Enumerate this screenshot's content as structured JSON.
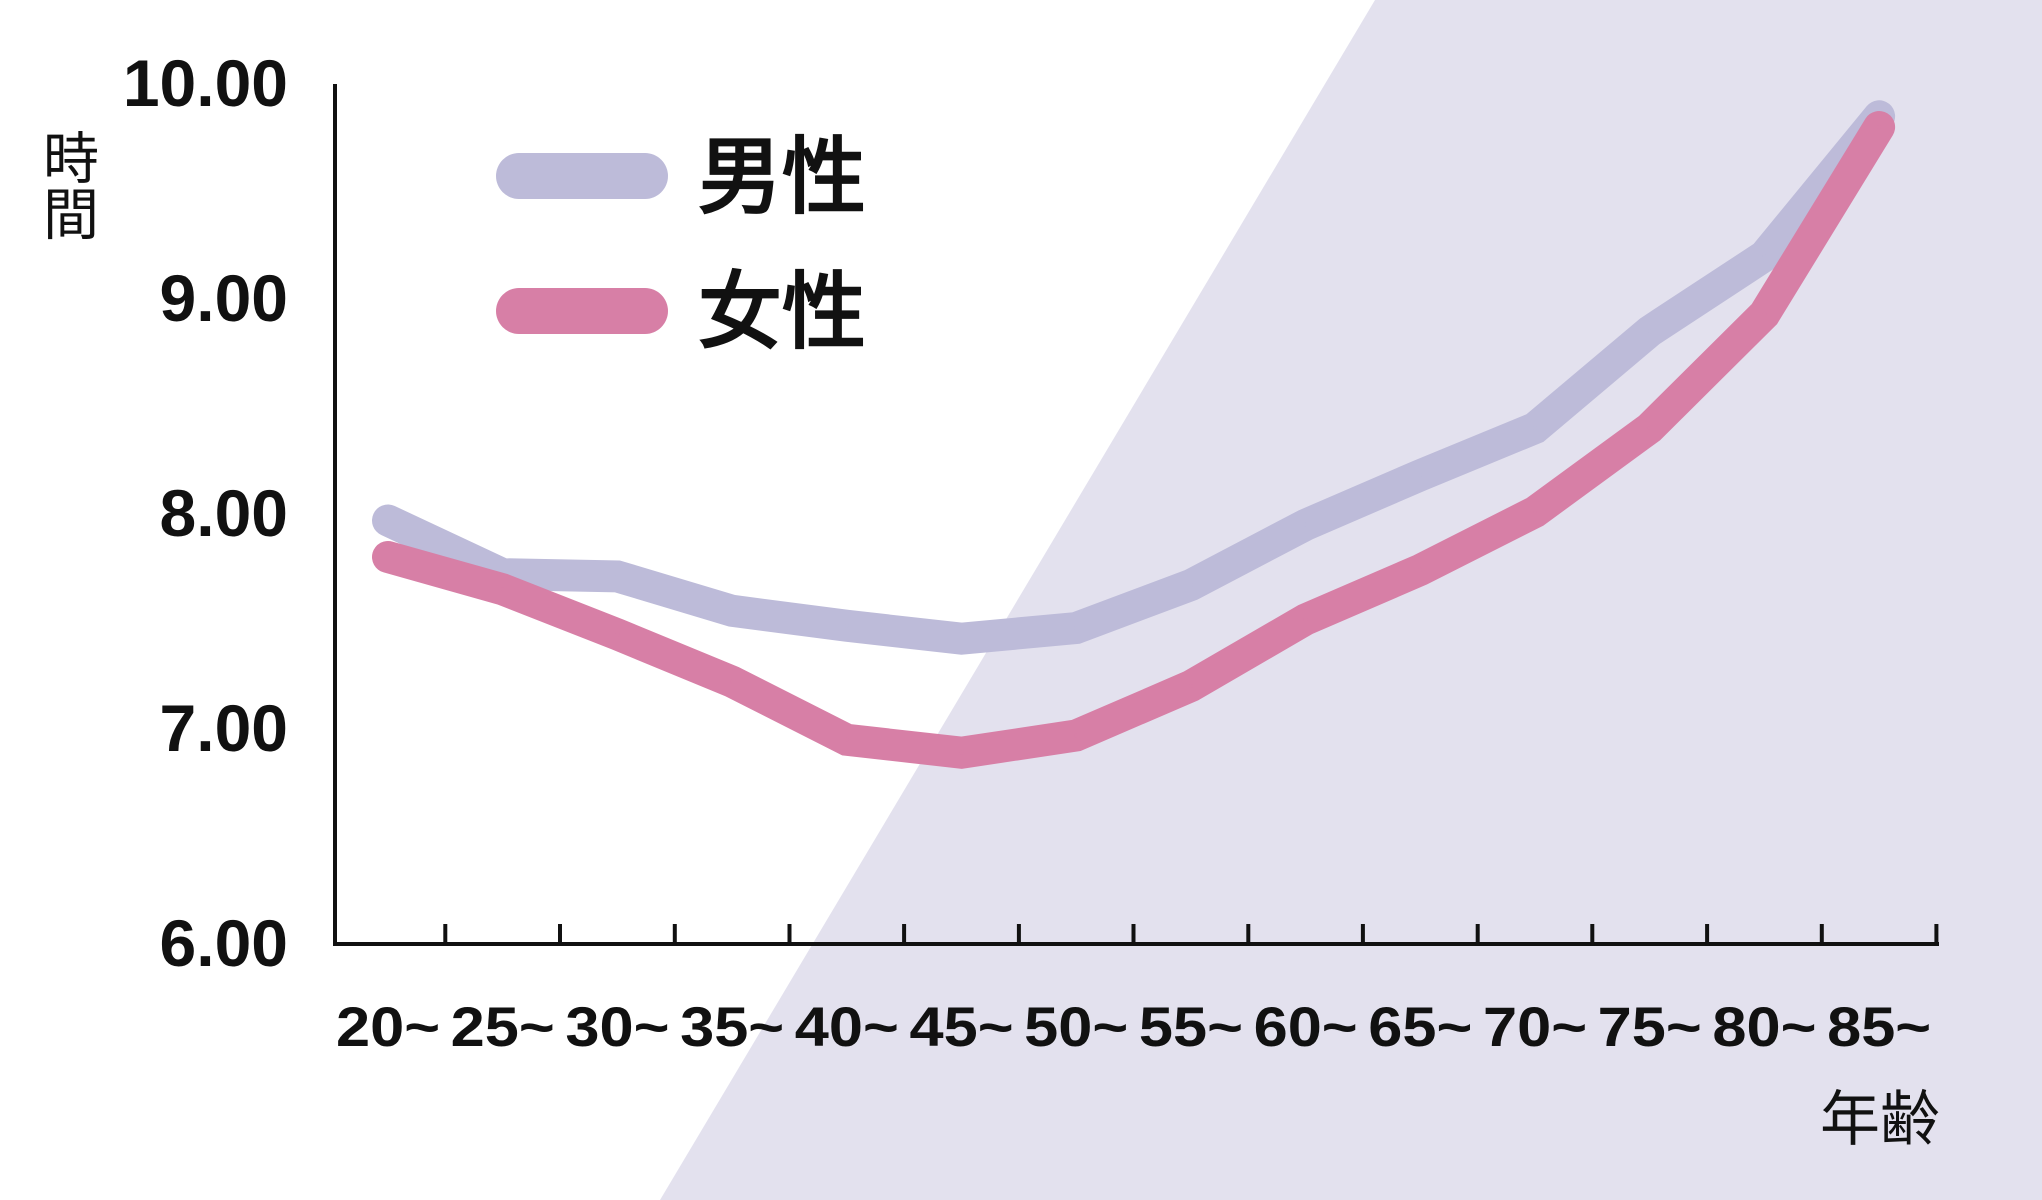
{
  "chart_data": {
    "type": "line",
    "title": "",
    "xlabel": "年齢",
    "ylabel": "時間",
    "categories": [
      "20~",
      "25~",
      "30~",
      "35~",
      "40~",
      "45~",
      "50~",
      "55~",
      "60~",
      "65~",
      "70~",
      "75~",
      "80~",
      "85~"
    ],
    "ylim": [
      6,
      10
    ],
    "yticks": [
      "6.00",
      "7.00",
      "8.00",
      "9.00",
      "10.00"
    ],
    "grid": false,
    "legend_position": "top-left",
    "series": [
      {
        "name": "男性",
        "color": "#bdbbd9",
        "values": [
          7.97,
          7.72,
          7.71,
          7.55,
          7.48,
          7.42,
          7.47,
          7.67,
          7.95,
          8.18,
          8.4,
          8.85,
          9.2,
          9.85
        ]
      },
      {
        "name": "女性",
        "color": "#d77fa6",
        "values": [
          7.8,
          7.65,
          7.44,
          7.22,
          6.95,
          6.89,
          6.97,
          7.2,
          7.51,
          7.74,
          8.01,
          8.4,
          8.93,
          9.8
        ]
      }
    ],
    "background_accent_color": "#e3e1ee"
  }
}
